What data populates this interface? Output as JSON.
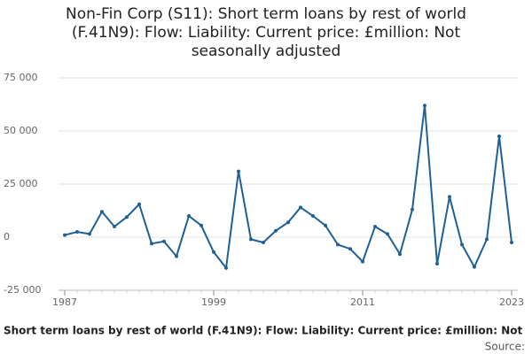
{
  "chart_data": {
    "type": "line",
    "title": "Non-Fin Corp (S11): Short term loans by rest of world (F.41N9): Flow: Liability: Current price: £million: Not seasonally adjusted",
    "footnote": "Short term loans by rest of world (F.41N9): Flow: Liability: Current price: £million: Not",
    "source": "Source:",
    "x": [
      1987,
      1988,
      1989,
      1990,
      1991,
      1992,
      1993,
      1994,
      1995,
      1996,
      1997,
      1998,
      1999,
      2000,
      2001,
      2002,
      2003,
      2004,
      2005,
      2006,
      2007,
      2008,
      2009,
      2010,
      2011,
      2012,
      2013,
      2014,
      2015,
      2016,
      2017,
      2018,
      2019,
      2020,
      2021,
      2022,
      2023
    ],
    "series": [
      {
        "name": "Short term loans by rest of world (F.41N9)",
        "color": "#206095",
        "values": [
          1000,
          2500,
          1500,
          12000,
          5000,
          9500,
          15500,
          -3000,
          -2000,
          -9000,
          10000,
          5500,
          -7000,
          -14500,
          31000,
          -1000,
          -2500,
          3000,
          7000,
          14000,
          10000,
          5500,
          -3500,
          -5500,
          -11500,
          5000,
          1500,
          -8000,
          13000,
          62000,
          -12500,
          19000,
          -3500,
          -14000,
          -1000,
          47500,
          -2500
        ]
      }
    ],
    "xlim": [
      1986.5,
      2023.5
    ],
    "xticks": [
      1987,
      1999,
      2011,
      2023
    ],
    "ylim": [
      -25000,
      75000
    ],
    "yticks": [
      {
        "value": -25000,
        "label": "-25 000"
      },
      0,
      {
        "value": 25000,
        "label": "25 000"
      },
      {
        "value": 50000,
        "label": "50 000"
      },
      {
        "value": 75000,
        "label": "75 000"
      }
    ],
    "grid": true
  }
}
